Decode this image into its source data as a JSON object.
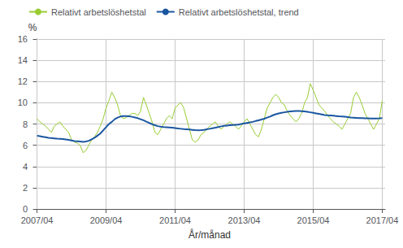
{
  "chart_data": {
    "type": "line",
    "xlabel": "År/månad",
    "ylabel": "%",
    "x": [
      0,
      1,
      2,
      3,
      4,
      5,
      6,
      7,
      8,
      9,
      10,
      11,
      12,
      13,
      14,
      15,
      16,
      17,
      18,
      19,
      20,
      21,
      22,
      23,
      24,
      25,
      26,
      27,
      28,
      29,
      30,
      31,
      32,
      33,
      34,
      35,
      36,
      37,
      38,
      39,
      40,
      41,
      42,
      43,
      44,
      45,
      46,
      47,
      48,
      49,
      50,
      51,
      52,
      53,
      54,
      55,
      56,
      57,
      58,
      59,
      60,
      61,
      62,
      63,
      64,
      65,
      66,
      67,
      68,
      69,
      70,
      71,
      72,
      73,
      74,
      75,
      76,
      77,
      78,
      79,
      80,
      81,
      82,
      83,
      84,
      85,
      86,
      87,
      88,
      89,
      90,
      91,
      92,
      93,
      94,
      95,
      96,
      97,
      98,
      99,
      100,
      101,
      102,
      103,
      104,
      105,
      106,
      107,
      108,
      109,
      110,
      111,
      112,
      113,
      114,
      115,
      116,
      117,
      118,
      119,
      120
    ],
    "series": [
      {
        "name": "Relativt arbetslöshetstal",
        "color": "#99cc33",
        "values": [
          8.5,
          8.2,
          8.0,
          7.8,
          7.5,
          7.2,
          7.8,
          8.0,
          8.2,
          7.8,
          7.5,
          7.2,
          6.5,
          6.3,
          6.2,
          6.0,
          5.3,
          5.5,
          6.0,
          6.5,
          6.8,
          7.2,
          7.8,
          8.5,
          9.5,
          10.2,
          11.0,
          10.5,
          9.8,
          8.8,
          8.5,
          8.6,
          8.8,
          9.0,
          9.0,
          8.8,
          9.2,
          10.5,
          9.8,
          9.0,
          8.2,
          7.2,
          7.0,
          7.5,
          8.0,
          8.5,
          8.8,
          8.5,
          9.5,
          9.8,
          10.0,
          9.5,
          8.5,
          7.5,
          6.5,
          6.3,
          6.5,
          7.0,
          7.2,
          7.5,
          7.8,
          8.0,
          8.2,
          7.8,
          7.5,
          7.8,
          8.0,
          8.2,
          8.0,
          7.8,
          7.5,
          7.8,
          8.2,
          8.5,
          8.0,
          7.5,
          7.0,
          6.8,
          7.5,
          8.5,
          9.5,
          10.0,
          10.5,
          10.8,
          10.5,
          10.0,
          9.8,
          9.2,
          8.8,
          8.5,
          8.2,
          8.5,
          9.0,
          10.0,
          10.5,
          11.8,
          11.2,
          10.5,
          9.8,
          9.5,
          9.2,
          8.8,
          8.5,
          8.2,
          8.0,
          7.8,
          7.5,
          8.0,
          8.5,
          9.0,
          10.5,
          11.0,
          10.5,
          9.8,
          9.0,
          8.5,
          8.0,
          7.5,
          8.0,
          8.5,
          10.2
        ]
      },
      {
        "name": "Relativt arbetslöshetstal, trend",
        "color": "#1a56a0",
        "values": [
          6.9,
          6.85,
          6.8,
          6.75,
          6.7,
          6.68,
          6.65,
          6.62,
          6.6,
          6.58,
          6.55,
          6.5,
          6.45,
          6.4,
          6.38,
          6.35,
          6.32,
          6.35,
          6.42,
          6.55,
          6.7,
          6.9,
          7.1,
          7.4,
          7.7,
          8.0,
          8.2,
          8.45,
          8.6,
          8.7,
          8.75,
          8.75,
          8.72,
          8.68,
          8.62,
          8.55,
          8.45,
          8.35,
          8.22,
          8.1,
          7.98,
          7.88,
          7.8,
          7.75,
          7.72,
          7.7,
          7.68,
          7.65,
          7.62,
          7.58,
          7.55,
          7.52,
          7.5,
          7.48,
          7.45,
          7.42,
          7.4,
          7.42,
          7.45,
          7.5,
          7.55,
          7.6,
          7.65,
          7.72,
          7.78,
          7.82,
          7.85,
          7.88,
          7.9,
          7.92,
          7.95,
          8.0,
          8.05,
          8.1,
          8.15,
          8.2,
          8.28,
          8.35,
          8.42,
          8.5,
          8.6,
          8.7,
          8.82,
          8.92,
          9.0,
          9.05,
          9.1,
          9.15,
          9.18,
          9.2,
          9.22,
          9.22,
          9.2,
          9.18,
          9.15,
          9.1,
          9.05,
          9.0,
          8.95,
          8.9,
          8.85,
          8.82,
          8.8,
          8.78,
          8.75,
          8.72,
          8.7,
          8.68,
          8.65,
          8.62,
          8.6,
          8.58,
          8.56,
          8.55,
          8.54,
          8.53,
          8.52,
          8.52,
          8.52,
          8.53,
          8.55
        ]
      }
    ],
    "xlim": [
      -1,
      121
    ],
    "xticks": [
      {
        "value": 0,
        "label": "2007/04"
      },
      {
        "value": 24,
        "label": "2009/04"
      },
      {
        "value": 48,
        "label": "2011/04"
      },
      {
        "value": 72,
        "label": "2013/04"
      },
      {
        "value": 96,
        "label": "2015/04"
      },
      {
        "value": 120,
        "label": "2017/04"
      }
    ],
    "ylim": [
      0,
      16
    ],
    "yticks": [
      0,
      2,
      4,
      6,
      8,
      10,
      12,
      14,
      16
    ],
    "grid": true,
    "legend": "top"
  }
}
